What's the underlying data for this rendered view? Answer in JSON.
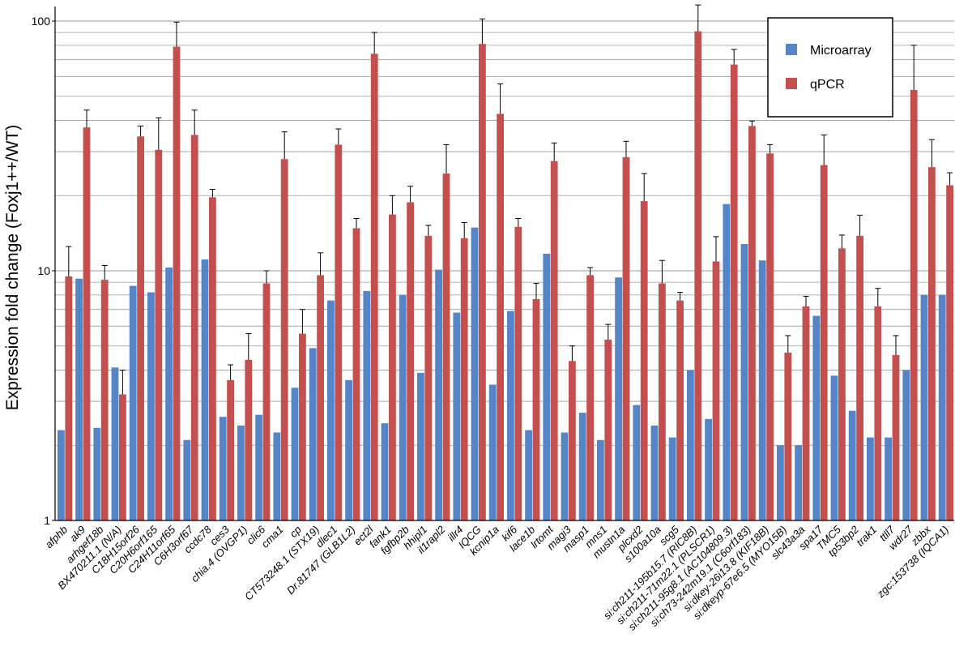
{
  "chart_data": {
    "type": "bar",
    "title": "",
    "xlabel": "",
    "ylabel": "Expression fold change (Foxj1++/WT)",
    "yscale": "log",
    "ylim": [
      1,
      120
    ],
    "yticks": [
      1,
      10,
      100
    ],
    "grid": "horizontal, minor log gridlines",
    "legend_position": "top-right",
    "colors": {
      "Microarray": "#5585c7",
      "qPCR": "#c44f4f"
    },
    "categories": [
      "afphb",
      "ak9",
      "arhgef18b",
      "BX470211.1 (N/A)",
      "C18H15orf26",
      "C20H6orf165",
      "C24H11orf65",
      "C6H3orf67",
      "ccdc78",
      "ces3",
      "chia.4 (OVGP1)",
      "clic6",
      "cma1",
      "cp",
      "CT573248.1 (STX19)",
      "dlec1",
      "Dr.81747 (GLB1L2)",
      "ect2l",
      "fank1",
      "fgfbp2b",
      "hhipl1",
      "il1rapl2",
      "illr4",
      "IQCG",
      "kcnip1a",
      "kif6",
      "lace1b",
      "lrtomt",
      "magi3",
      "masp1",
      "mns1",
      "mustn1a",
      "plcxd2",
      "s100a10a",
      "scg5",
      "si:ch211-195b15.7 (RIC8B)",
      "si:ch211-71m22.1 (PLSCR1)",
      "si:ch211-95g8.1 (AC104809.3)",
      "si:ch73-242m19.1 (C6orf183)",
      "si:dkey-26i13.8 (KIF18B)",
      "si:dkeyp-67e6.5 (MYO15B)",
      "slc43a3a",
      "spa17",
      "TMC5",
      "tp53bp2",
      "trak1",
      "ttll7",
      "wdr27",
      "zbbx",
      "zgc:153738 (IQCA1)"
    ],
    "series": [
      {
        "name": "Microarray",
        "values": [
          2.3,
          9.3,
          2.35,
          4.1,
          8.7,
          8.2,
          10.3,
          2.1,
          11.1,
          2.6,
          2.4,
          2.65,
          2.25,
          3.4,
          4.9,
          7.6,
          3.65,
          8.3,
          2.45,
          8.0,
          3.9,
          10.1,
          6.8,
          14.9,
          3.5,
          6.9,
          2.3,
          11.7,
          2.25,
          2.7,
          2.1,
          9.4,
          2.9,
          2.4,
          2.15,
          4.0,
          2.55,
          18.5,
          12.8,
          11.0,
          2.0,
          2.0,
          6.6,
          3.8,
          2.75,
          2.15,
          2.15,
          4.0,
          8.0,
          8.0
        ]
      },
      {
        "name": "qPCR",
        "values": [
          9.5,
          37.5,
          9.2,
          3.2,
          34.5,
          30.5,
          79.0,
          35.0,
          19.7,
          3.65,
          4.4,
          8.9,
          28.0,
          5.6,
          9.6,
          32.0,
          14.8,
          74.0,
          16.8,
          18.8,
          13.8,
          24.5,
          13.5,
          81.0,
          42.5,
          15.0,
          7.7,
          27.5,
          4.35,
          9.6,
          5.3,
          28.5,
          19.0,
          8.9,
          7.6,
          91.0,
          10.9,
          67.0,
          38.0,
          29.5,
          4.7,
          7.2,
          26.5,
          12.3,
          13.8,
          7.2,
          4.6,
          53.0,
          26.0,
          22.0
        ]
      }
    ],
    "error_bars_qpcr": [
      12.5,
      44.0,
      10.5,
      4.0,
      38.0,
      41.0,
      99.0,
      44.0,
      21.2,
      4.2,
      5.6,
      10.0,
      36.0,
      7.0,
      11.8,
      37.0,
      16.2,
      90.0,
      20.0,
      21.8,
      15.2,
      32.0,
      15.6,
      102.0,
      56.0,
      16.2,
      8.9,
      32.5,
      5.0,
      10.3,
      6.1,
      33.0,
      24.5,
      11.0,
      8.2,
      116.0,
      13.7,
      77.0,
      39.8,
      32.0,
      5.5,
      7.9,
      35.0,
      13.9,
      16.7,
      8.5,
      5.5,
      80.0,
      33.5,
      24.7
    ]
  }
}
